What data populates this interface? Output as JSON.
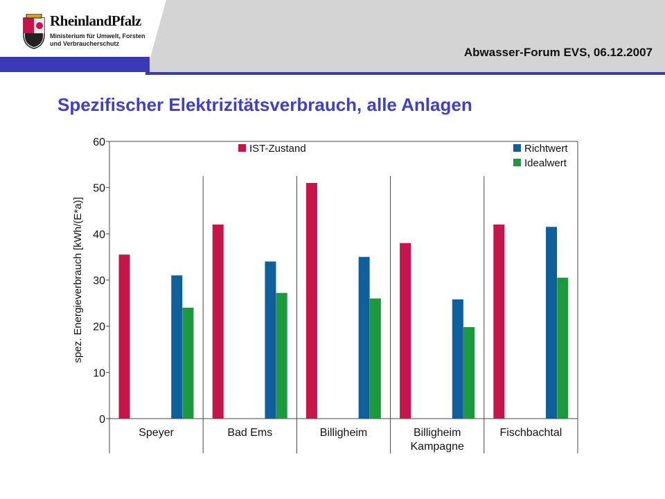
{
  "header": {
    "logo_name": "RheinlandPfalz",
    "logo_sub_line1": "Ministerium für Umwelt, Forsten",
    "logo_sub_line2": "und Verbraucherschutz",
    "event": "Abwasser-Forum EVS, 06.12.2007"
  },
  "slide": {
    "title": "Spezifischer Elektrizitätsverbrauch, alle Anlagen"
  },
  "colors": {
    "ist": "#c4164a",
    "richtwert": "#0f5f9a",
    "idealwert": "#1a9a3c",
    "header_grey": "#d4d4d4",
    "header_blue": "#3a3ab8",
    "title": "#3e3ecf"
  },
  "chart_data": {
    "type": "bar",
    "ylabel": "spez. Energieverbrauch [kWh/(E*a)]",
    "xlabel": "",
    "ylim": [
      0,
      60
    ],
    "yticks": [
      0,
      10,
      20,
      30,
      40,
      50,
      60
    ],
    "categories": [
      "Speyer",
      "Bad Ems",
      "Billigheim",
      "Billigheim\nKampagne",
      "Fischbachtal"
    ],
    "series": [
      {
        "name": "IST-Zustand",
        "color": "#c4164a",
        "values": [
          35.5,
          42,
          51,
          38,
          42
        ]
      },
      {
        "name": "Richtwert",
        "color": "#0f5f9a",
        "values": [
          31,
          34,
          35,
          25.8,
          41.5
        ]
      },
      {
        "name": "Idealwert",
        "color": "#1a9a3c",
        "values": [
          24,
          27.2,
          26,
          19.8,
          30.5
        ]
      }
    ],
    "legend": "top-left and top-right",
    "grid": false
  }
}
